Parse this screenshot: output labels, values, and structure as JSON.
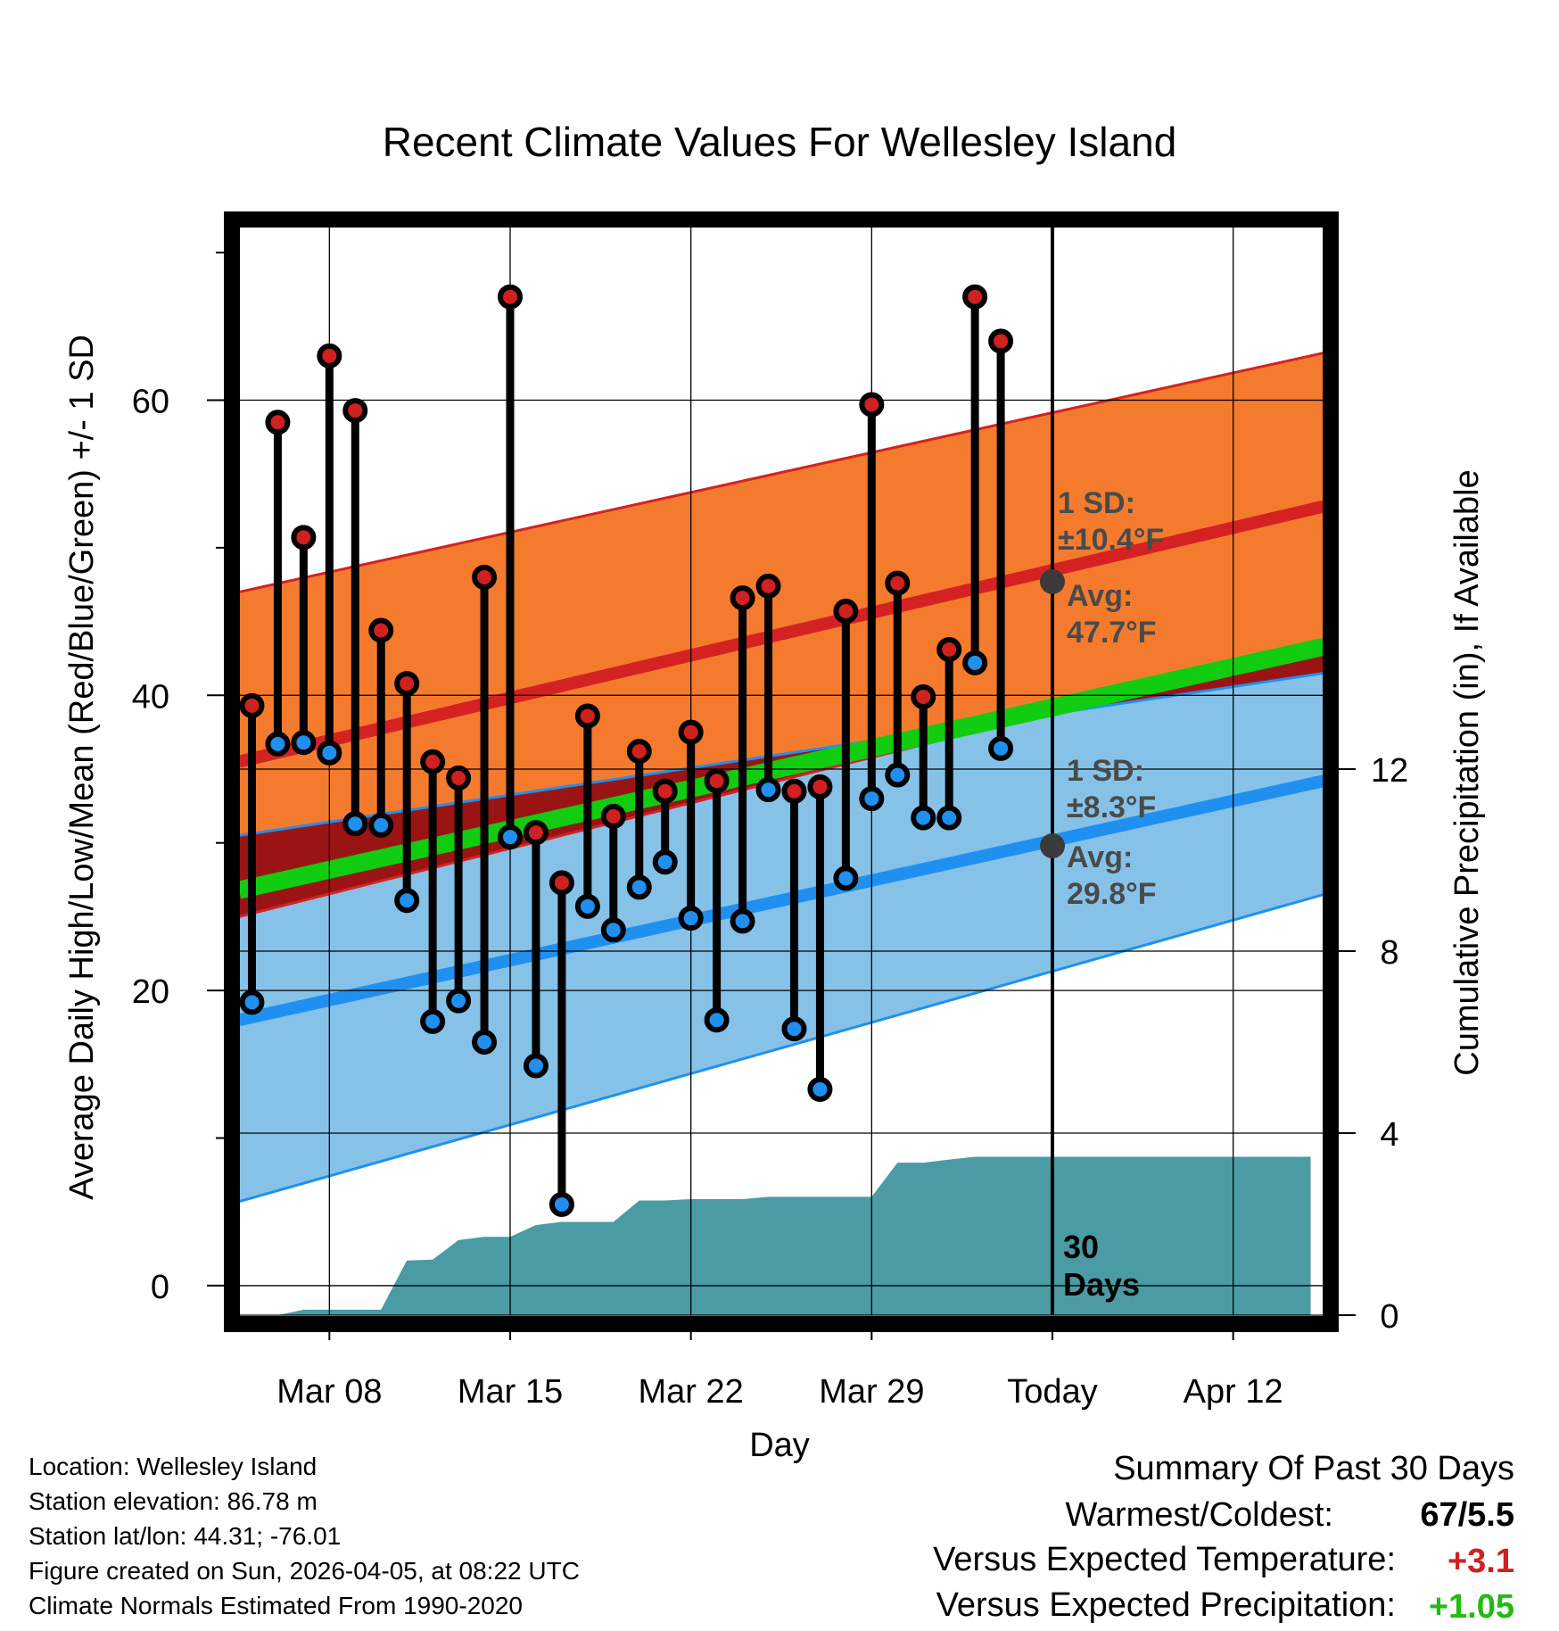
{
  "chart_data": {
    "type": "line",
    "title": "Recent Climate Values For Wellesley Island",
    "xlabel": "Day",
    "ylabel": "Average Daily High/Low/Mean (Red/Blue/Green) +/- 1 SD",
    "y2label": "Cumulative Precipitation (in), If Available",
    "ylim": [
      -2,
      72
    ],
    "y2lim": [
      0,
      24
    ],
    "xlim": [
      -0.5,
      41.5
    ],
    "x_ticks": [
      {
        "day": 3,
        "label": "Mar 08"
      },
      {
        "day": 10,
        "label": "Mar 15"
      },
      {
        "day": 17,
        "label": "Mar 22"
      },
      {
        "day": 24,
        "label": "Mar 29"
      },
      {
        "day": 31,
        "label": "Today"
      },
      {
        "day": 38,
        "label": "Apr 12"
      }
    ],
    "y_ticks": [
      0,
      20,
      40,
      60
    ],
    "y_minor_ticks": [
      10,
      30,
      50,
      70
    ],
    "y2_ticks": [
      0,
      4,
      8,
      12
    ],
    "today_index": 31,
    "normals": {
      "high_avg": {
        "start": 35.5,
        "end": 52.8
      },
      "high_sd_upper": {
        "start": 47.0,
        "end": 63.2
      },
      "high_sd_lower": {
        "start": 25.0,
        "end": 43.5
      },
      "low_avg": {
        "start": 18.0,
        "end": 34.2
      },
      "low_sd_upper": {
        "start": 30.5,
        "end": 41.5
      },
      "low_sd_lower": {
        "start": 5.7,
        "end": 26.5
      },
      "mean_avg": {
        "start": 26.8,
        "end": 43.3
      }
    },
    "high_annotation": {
      "label": "1 SD:",
      "sd": "±10.4°F",
      "avg_label": "Avg:",
      "avg": "47.7°F",
      "avg_value": 47.7
    },
    "low_annotation": {
      "label": "1 SD:",
      "sd": "±8.3°F",
      "avg_label": "Avg:",
      "avg": "29.8°F",
      "avg_value": 29.8
    },
    "days_label": [
      "30",
      "Days"
    ],
    "series": [
      {
        "name": "Daily High",
        "color": "#d02020",
        "days": [
          0,
          1,
          2,
          3,
          4,
          5,
          6,
          7,
          8,
          9,
          10,
          11,
          12,
          13,
          14,
          15,
          16,
          17,
          18,
          19,
          20,
          21,
          22,
          23,
          24,
          25,
          26,
          27,
          28,
          29
        ],
        "values": [
          39.3,
          58.5,
          50.7,
          63.0,
          59.3,
          44.4,
          40.8,
          35.5,
          34.4,
          48.0,
          67.0,
          30.7,
          27.3,
          38.6,
          31.8,
          36.2,
          33.5,
          37.5,
          34.2,
          46.6,
          47.4,
          33.5,
          33.8,
          45.7,
          59.7,
          47.6,
          39.9,
          43.1,
          67.0,
          64.0
        ]
      },
      {
        "name": "Daily Low",
        "color": "#2090f0",
        "days": [
          0,
          1,
          2,
          3,
          4,
          5,
          6,
          7,
          8,
          9,
          10,
          11,
          12,
          13,
          14,
          15,
          16,
          17,
          18,
          19,
          20,
          21,
          22,
          23,
          24,
          25,
          26,
          27,
          28,
          29
        ],
        "values": [
          19.2,
          36.7,
          36.8,
          36.1,
          31.3,
          31.2,
          26.1,
          17.9,
          19.3,
          16.5,
          30.4,
          14.9,
          5.5,
          25.7,
          24.1,
          27.0,
          28.7,
          24.9,
          18.0,
          24.7,
          33.6,
          17.4,
          13.3,
          27.6,
          33.0,
          34.6,
          31.7,
          31.7,
          42.2,
          36.4
        ]
      },
      {
        "name": "Cumulative Precipitation",
        "color": "#4a9ba4",
        "axis": "y2",
        "days": [
          0,
          1,
          2,
          3,
          4,
          5,
          6,
          7,
          8,
          9,
          10,
          11,
          12,
          13,
          14,
          15,
          16,
          17,
          18,
          19,
          20,
          21,
          22,
          23,
          24,
          25,
          26,
          27,
          28,
          29,
          30,
          31,
          41
        ],
        "values": [
          0,
          0,
          0.12,
          0.12,
          0.12,
          0.12,
          1.2,
          1.22,
          1.65,
          1.72,
          1.72,
          1.98,
          2.05,
          2.05,
          2.05,
          2.52,
          2.52,
          2.55,
          2.55,
          2.55,
          2.6,
          2.6,
          2.6,
          2.6,
          2.6,
          3.35,
          3.35,
          3.42,
          3.48,
          3.48,
          3.48,
          3.48,
          3.48
        ]
      }
    ]
  },
  "footer": {
    "location": "Location: Wellesley Island",
    "elevation": "Station elevation: 86.78 m",
    "latlon": "Station lat/lon: 44.31; -76.01",
    "created": "Figure created on Sun, 2026-04-05, at 08:22 UTC",
    "normals": "Climate Normals Estimated From 1990-2020"
  },
  "summary": {
    "heading": "Summary Of Past 30 Days",
    "warm_cold_label": "Warmest/Coldest:",
    "warm_cold_value": "67/5.5",
    "temp_label": "Versus Expected Temperature:",
    "temp_value": "+3.1",
    "temp_color": "#d02020",
    "precip_label": "Versus Expected Precipitation:",
    "precip_value": "+1.05",
    "precip_color": "#22bb11"
  },
  "colors": {
    "high_band": "#f47b2e",
    "low_band": "#86c2e8",
    "overlap_band": "#9b1414",
    "mean_line": "#11cc11",
    "high_line": "#d42222",
    "low_line": "#2090f0",
    "precip_fill": "#4a9ba4"
  }
}
